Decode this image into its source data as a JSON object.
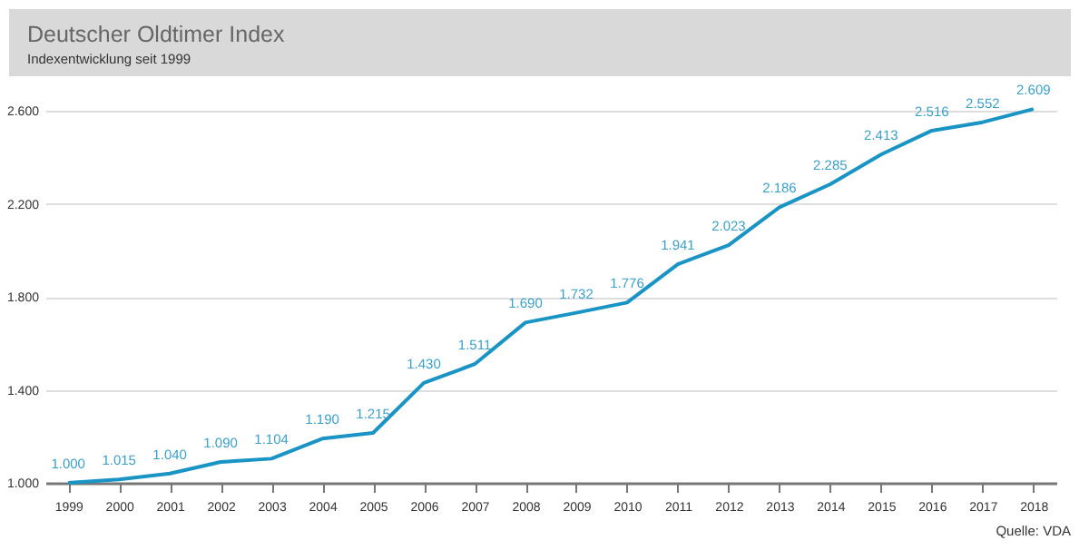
{
  "chart_data": {
    "type": "line",
    "title": "Deutscher Oldtimer Index",
    "subtitle": "Indexentwicklung seit 1999",
    "annotations": [
      "Quelle: VDA"
    ],
    "categories": [
      "1999",
      "2000",
      "2001",
      "2002",
      "2003",
      "2004",
      "2005",
      "2006",
      "2007",
      "2008",
      "2009",
      "2010",
      "2011",
      "2012",
      "2013",
      "2014",
      "2015",
      "2016",
      "2017",
      "2018"
    ],
    "series": [
      {
        "color": "#1a94c4",
        "values": [
          1000,
          1015,
          1040,
          1090,
          1104,
          1190,
          1215,
          1430,
          1511,
          1690,
          1732,
          1776,
          1941,
          2023,
          2186,
          2285,
          2413,
          2516,
          2552,
          2609
        ],
        "value_labels": [
          "1.000",
          "1.015",
          "1.040",
          "1.090",
          "1.104",
          "1.190",
          "1.215",
          "1.430",
          "1.511",
          "1.690",
          "1.732",
          "1.776",
          "1.941",
          "2.023",
          "2.186",
          "2.285",
          "2.413",
          "2.516",
          "2.552",
          "2.609"
        ]
      }
    ],
    "ylim": [
      1000,
      2750
    ],
    "yticks": [
      {
        "value": 1000,
        "label": "1.000"
      },
      {
        "value": 1400,
        "label": "1.400"
      },
      {
        "value": 1800,
        "label": "1.800"
      },
      {
        "value": 2200,
        "label": "2.200"
      },
      {
        "value": 2600,
        "label": "2.600"
      }
    ],
    "grid": "y",
    "marker": "none",
    "line_style": "solid"
  }
}
